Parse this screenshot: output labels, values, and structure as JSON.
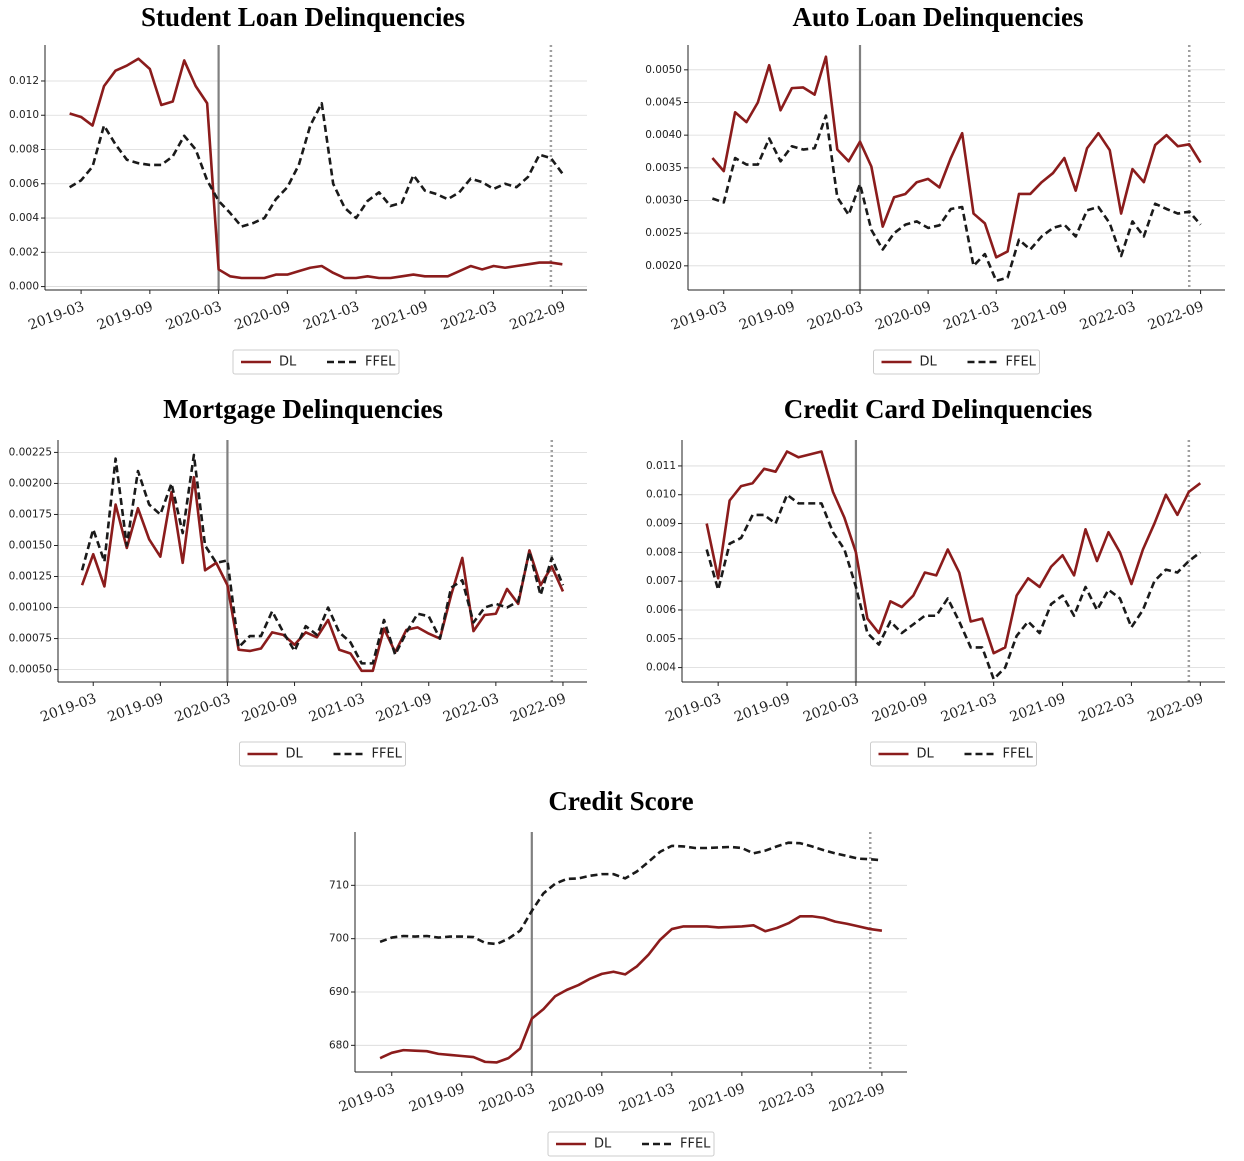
{
  "chart_data": [
    {
      "type": "line",
      "title": "Student Loan Delinquencies",
      "x": [
        "2019-02",
        "2019-03",
        "2019-04",
        "2019-05",
        "2019-06",
        "2019-07",
        "2019-08",
        "2019-09",
        "2019-10",
        "2019-11",
        "2019-12",
        "2020-01",
        "2020-02",
        "2020-03",
        "2020-04",
        "2020-05",
        "2020-06",
        "2020-07",
        "2020-08",
        "2020-09",
        "2020-10",
        "2020-11",
        "2020-12",
        "2021-01",
        "2021-02",
        "2021-03",
        "2021-04",
        "2021-05",
        "2021-06",
        "2021-07",
        "2021-08",
        "2021-09",
        "2021-10",
        "2021-11",
        "2021-12",
        "2022-01",
        "2022-02",
        "2022-03",
        "2022-04",
        "2022-05",
        "2022-06",
        "2022-07",
        "2022-08",
        "2022-09"
      ],
      "xticks": [
        "2019-03",
        "2019-09",
        "2020-03",
        "2020-09",
        "2021-03",
        "2021-09",
        "2022-03",
        "2022-09"
      ],
      "ylim": [
        -0.0002,
        0.0141
      ],
      "yticks": [
        {
          "value": 0,
          "label": "0.000"
        },
        0.002,
        0.004,
        0.006,
        0.008,
        {
          "value": 0.01,
          "label": "0.010"
        },
        0.012
      ],
      "grid": true,
      "vlines": [
        {
          "x": "2020-03",
          "style": "solid"
        },
        {
          "x": "2022-08",
          "style": "dotted"
        }
      ],
      "series": [
        {
          "name": "DL",
          "color": "#8b1c1c",
          "style": "solid",
          "values": [
            0.0101,
            0.0099,
            0.0094,
            0.0117,
            0.0126,
            0.0129,
            0.0133,
            0.0127,
            0.0106,
            0.0108,
            0.0132,
            0.0117,
            0.0107,
            0.001,
            0.0006,
            0.0005,
            0.0005,
            0.0005,
            0.0007,
            0.0007,
            0.0009,
            0.0011,
            0.0012,
            0.0008,
            0.0005,
            0.0005,
            0.0006,
            0.0005,
            0.0005,
            0.0006,
            0.0007,
            0.0006,
            0.0006,
            0.0006,
            0.0009,
            0.0012,
            0.001,
            0.0012,
            0.0011,
            0.0012,
            0.0013,
            0.0014,
            0.0014,
            0.0013
          ]
        },
        {
          "name": "FFEL",
          "color": "#1a1a1a",
          "style": "dashed",
          "values": [
            0.0058,
            0.0062,
            0.007,
            0.0094,
            0.0083,
            0.0074,
            0.0072,
            0.0071,
            0.0071,
            0.0076,
            0.0088,
            0.008,
            0.0062,
            0.005,
            0.0043,
            0.0035,
            0.0037,
            0.004,
            0.0051,
            0.0058,
            0.0071,
            0.0094,
            0.0107,
            0.006,
            0.0046,
            0.004,
            0.005,
            0.0055,
            0.0047,
            0.0049,
            0.0065,
            0.0056,
            0.0054,
            0.0051,
            0.0055,
            0.0063,
            0.0061,
            0.0057,
            0.006,
            0.0058,
            0.0064,
            0.0077,
            0.0075,
            0.0066
          ]
        }
      ]
    },
    {
      "type": "line",
      "title": "Auto Loan Delinquencies",
      "x": [
        "2019-02",
        "2019-03",
        "2019-04",
        "2019-05",
        "2019-06",
        "2019-07",
        "2019-08",
        "2019-09",
        "2019-10",
        "2019-11",
        "2019-12",
        "2020-01",
        "2020-02",
        "2020-03",
        "2020-04",
        "2020-05",
        "2020-06",
        "2020-07",
        "2020-08",
        "2020-09",
        "2020-10",
        "2020-11",
        "2020-12",
        "2021-01",
        "2021-02",
        "2021-03",
        "2021-04",
        "2021-05",
        "2021-06",
        "2021-07",
        "2021-08",
        "2021-09",
        "2021-10",
        "2021-11",
        "2021-12",
        "2022-01",
        "2022-02",
        "2022-03",
        "2022-04",
        "2022-05",
        "2022-06",
        "2022-07",
        "2022-08",
        "2022-09"
      ],
      "xticks": [
        "2019-03",
        "2019-09",
        "2020-03",
        "2020-09",
        "2021-03",
        "2021-09",
        "2022-03",
        "2022-09"
      ],
      "ylim": [
        0.00163,
        0.00538
      ],
      "yticks": [
        {
          "value": 0.002,
          "label": "0.0020"
        },
        0.0025,
        {
          "value": 0.003,
          "label": "0.0030"
        },
        0.0035,
        {
          "value": 0.004,
          "label": "0.0040"
        },
        0.0045,
        {
          "value": 0.005,
          "label": "0.0050"
        }
      ],
      "grid": true,
      "vlines": [
        {
          "x": "2020-03",
          "style": "solid"
        },
        {
          "x": "2022-08",
          "style": "dotted"
        }
      ],
      "series": [
        {
          "name": "DL",
          "color": "#8b1c1c",
          "style": "solid",
          "values": [
            0.00365,
            0.00345,
            0.00435,
            0.0042,
            0.0045,
            0.00507,
            0.00438,
            0.00472,
            0.00473,
            0.00462,
            0.0052,
            0.00378,
            0.0036,
            0.0039,
            0.00352,
            0.0026,
            0.00305,
            0.0031,
            0.00328,
            0.00333,
            0.0032,
            0.00365,
            0.00403,
            0.0028,
            0.00265,
            0.00213,
            0.00222,
            0.0031,
            0.0031,
            0.00328,
            0.00342,
            0.00365,
            0.00315,
            0.0038,
            0.00403,
            0.00377,
            0.0028,
            0.00348,
            0.00328,
            0.00385,
            0.004,
            0.00383,
            0.00386,
            0.00358
          ]
        },
        {
          "name": "FFEL",
          "color": "#1a1a1a",
          "style": "dashed",
          "values": [
            0.00303,
            0.00297,
            0.00365,
            0.00355,
            0.00355,
            0.00395,
            0.0036,
            0.00383,
            0.00378,
            0.0038,
            0.0043,
            0.00305,
            0.00278,
            0.00325,
            0.00255,
            0.00225,
            0.0025,
            0.00263,
            0.00268,
            0.00258,
            0.00262,
            0.00287,
            0.0029,
            0.002,
            0.00218,
            0.00177,
            0.00182,
            0.0024,
            0.00225,
            0.00245,
            0.00258,
            0.00263,
            0.00245,
            0.00285,
            0.0029,
            0.00265,
            0.00215,
            0.00268,
            0.00245,
            0.00295,
            0.00287,
            0.0028,
            0.00283,
            0.00263
          ]
        }
      ]
    },
    {
      "type": "line",
      "title": "Mortgage Delinquencies",
      "x": [
        "2019-02",
        "2019-03",
        "2019-04",
        "2019-05",
        "2019-06",
        "2019-07",
        "2019-08",
        "2019-09",
        "2019-10",
        "2019-11",
        "2019-12",
        "2020-01",
        "2020-02",
        "2020-03",
        "2020-04",
        "2020-05",
        "2020-06",
        "2020-07",
        "2020-08",
        "2020-09",
        "2020-10",
        "2020-11",
        "2020-12",
        "2021-01",
        "2021-02",
        "2021-03",
        "2021-04",
        "2021-05",
        "2021-06",
        "2021-07",
        "2021-08",
        "2021-09",
        "2021-10",
        "2021-11",
        "2021-12",
        "2022-01",
        "2022-02",
        "2022-03",
        "2022-04",
        "2022-05",
        "2022-06",
        "2022-07",
        "2022-08",
        "2022-09"
      ],
      "xticks": [
        "2019-03",
        "2019-09",
        "2020-03",
        "2020-09",
        "2021-03",
        "2021-09",
        "2022-03",
        "2022-09"
      ],
      "ylim": [
        0.0004,
        0.00235
      ],
      "yticks": [
        {
          "value": 0.0005,
          "label": "0.00050"
        },
        0.00075,
        {
          "value": 0.001,
          "label": "0.00100"
        },
        0.00125,
        {
          "value": 0.0015,
          "label": "0.00150"
        },
        0.00175,
        {
          "value": 0.002,
          "label": "0.00200"
        },
        0.00225
      ],
      "grid": true,
      "vlines": [
        {
          "x": "2020-03",
          "style": "solid"
        },
        {
          "x": "2022-08",
          "style": "dotted"
        }
      ],
      "series": [
        {
          "name": "DL",
          "color": "#8b1c1c",
          "style": "solid",
          "values": [
            0.00118,
            0.00143,
            0.00117,
            0.00183,
            0.00148,
            0.0018,
            0.00155,
            0.00141,
            0.00193,
            0.00136,
            0.00205,
            0.0013,
            0.00136,
            0.00118,
            0.00066,
            0.00065,
            0.00067,
            0.0008,
            0.00078,
            0.0007,
            0.0008,
            0.00076,
            0.0009,
            0.00066,
            0.00063,
            0.00049,
            0.00049,
            0.00083,
            0.00064,
            0.00082,
            0.00084,
            0.00079,
            0.00075,
            0.0011,
            0.0014,
            0.00081,
            0.00094,
            0.00095,
            0.00115,
            0.00103,
            0.00146,
            0.00118,
            0.00133,
            0.00113
          ]
        },
        {
          "name": "FFEL",
          "color": "#1a1a1a",
          "style": "dashed",
          "values": [
            0.0013,
            0.00163,
            0.00137,
            0.0022,
            0.0015,
            0.0021,
            0.00183,
            0.00175,
            0.002,
            0.0016,
            0.00223,
            0.0015,
            0.00136,
            0.00138,
            0.00068,
            0.00077,
            0.00077,
            0.00097,
            0.0008,
            0.00065,
            0.00085,
            0.00078,
            0.001,
            0.0008,
            0.00072,
            0.00055,
            0.00055,
            0.0009,
            0.00062,
            0.0008,
            0.00095,
            0.00093,
            0.00075,
            0.00116,
            0.00122,
            0.00088,
            0.001,
            0.00103,
            0.001,
            0.00105,
            0.00145,
            0.0011,
            0.0014,
            0.00118
          ]
        }
      ]
    },
    {
      "type": "line",
      "title": "Credit Card Delinquencies",
      "x": [
        "2019-02",
        "2019-03",
        "2019-04",
        "2019-05",
        "2019-06",
        "2019-07",
        "2019-08",
        "2019-09",
        "2019-10",
        "2019-11",
        "2019-12",
        "2020-01",
        "2020-02",
        "2020-03",
        "2020-04",
        "2020-05",
        "2020-06",
        "2020-07",
        "2020-08",
        "2020-09",
        "2020-10",
        "2020-11",
        "2020-12",
        "2021-01",
        "2021-02",
        "2021-03",
        "2021-04",
        "2021-05",
        "2021-06",
        "2021-07",
        "2021-08",
        "2021-09",
        "2021-10",
        "2021-11",
        "2021-12",
        "2022-01",
        "2022-02",
        "2022-03",
        "2022-04",
        "2022-05",
        "2022-06",
        "2022-07",
        "2022-08",
        "2022-09"
      ],
      "xticks": [
        "2019-03",
        "2019-09",
        "2020-03",
        "2020-09",
        "2021-03",
        "2021-09",
        "2022-03",
        "2022-09"
      ],
      "ylim": [
        0.0035,
        0.0119
      ],
      "yticks": [
        0.004,
        0.005,
        0.006,
        0.007,
        0.008,
        0.009,
        {
          "value": 0.01,
          "label": "0.010"
        },
        0.011
      ],
      "grid": true,
      "vlines": [
        {
          "x": "2020-03",
          "style": "solid"
        },
        {
          "x": "2022-08",
          "style": "dotted"
        }
      ],
      "series": [
        {
          "name": "DL",
          "color": "#8b1c1c",
          "style": "solid",
          "values": [
            0.009,
            0.0071,
            0.0098,
            0.0103,
            0.0104,
            0.0109,
            0.0108,
            0.0115,
            0.0113,
            0.0114,
            0.0115,
            0.0101,
            0.0092,
            0.008,
            0.0057,
            0.0052,
            0.0063,
            0.0061,
            0.0065,
            0.0073,
            0.0072,
            0.0081,
            0.0073,
            0.0056,
            0.0057,
            0.0045,
            0.0047,
            0.0065,
            0.0071,
            0.0068,
            0.0075,
            0.0079,
            0.0072,
            0.0088,
            0.0077,
            0.0087,
            0.008,
            0.0069,
            0.0081,
            0.009,
            0.01,
            0.0093,
            0.0101,
            0.0104
          ]
        },
        {
          "name": "FFEL",
          "color": "#1a1a1a",
          "style": "dashed",
          "values": [
            0.0081,
            0.0067,
            0.0083,
            0.0085,
            0.0093,
            0.0093,
            0.009,
            0.01,
            0.0097,
            0.0097,
            0.0097,
            0.0087,
            0.0081,
            0.0068,
            0.0052,
            0.0048,
            0.0056,
            0.0052,
            0.0055,
            0.0058,
            0.0058,
            0.0064,
            0.0056,
            0.0047,
            0.0047,
            0.0036,
            0.004,
            0.0051,
            0.0056,
            0.0052,
            0.0062,
            0.0065,
            0.0058,
            0.0068,
            0.006,
            0.0067,
            0.0064,
            0.0054,
            0.006,
            0.007,
            0.0074,
            0.0073,
            0.0077,
            0.008
          ]
        }
      ]
    },
    {
      "type": "line",
      "title": "Credit Score",
      "x": [
        "2019-02",
        "2019-03",
        "2019-04",
        "2019-05",
        "2019-06",
        "2019-07",
        "2019-08",
        "2019-09",
        "2019-10",
        "2019-11",
        "2019-12",
        "2020-01",
        "2020-02",
        "2020-03",
        "2020-04",
        "2020-05",
        "2020-06",
        "2020-07",
        "2020-08",
        "2020-09",
        "2020-10",
        "2020-11",
        "2020-12",
        "2021-01",
        "2021-02",
        "2021-03",
        "2021-04",
        "2021-05",
        "2021-06",
        "2021-07",
        "2021-08",
        "2021-09",
        "2021-10",
        "2021-11",
        "2021-12",
        "2022-01",
        "2022-02",
        "2022-03",
        "2022-04",
        "2022-05",
        "2022-06",
        "2022-07",
        "2022-08",
        "2022-09"
      ],
      "xticks": [
        "2019-03",
        "2019-09",
        "2020-03",
        "2020-09",
        "2021-03",
        "2021-09",
        "2022-03",
        "2022-09"
      ],
      "ylim": [
        675,
        720
      ],
      "yticks": [
        680,
        690,
        700,
        710
      ],
      "grid": true,
      "vlines": [
        {
          "x": "2020-03",
          "style": "solid"
        },
        {
          "x": "2022-08",
          "style": "dotted"
        }
      ],
      "series": [
        {
          "name": "DL",
          "color": "#8b1c1c",
          "style": "solid",
          "values": [
            677.6,
            678.6,
            679.1,
            679.0,
            678.9,
            678.4,
            678.2,
            678.0,
            677.8,
            676.9,
            676.8,
            677.6,
            679.4,
            685.0,
            686.8,
            689.2,
            690.4,
            691.3,
            692.5,
            693.4,
            693.8,
            693.3,
            694.8,
            697.0,
            699.8,
            701.8,
            702.3,
            702.3,
            702.3,
            702.1,
            702.2,
            702.3,
            702.5,
            701.4,
            702.0,
            702.9,
            704.2,
            704.2,
            703.9,
            703.2,
            702.8,
            702.3,
            701.8,
            701.5
          ]
        },
        {
          "name": "FFEL",
          "color": "#1a1a1a",
          "style": "dashed",
          "values": [
            699.4,
            700.2,
            700.5,
            700.4,
            700.5,
            700.2,
            700.4,
            700.4,
            700.3,
            699.2,
            699.0,
            700.0,
            701.5,
            705.2,
            708.5,
            710.3,
            711.2,
            711.3,
            711.8,
            712.1,
            712.1,
            711.3,
            712.6,
            714.4,
            716.3,
            717.4,
            717.3,
            717.0,
            717.0,
            717.1,
            717.2,
            717.0,
            716.0,
            716.5,
            717.3,
            718.0,
            717.9,
            717.3,
            716.6,
            716.0,
            715.5,
            715.0,
            714.9,
            714.7
          ]
        }
      ]
    }
  ]
}
